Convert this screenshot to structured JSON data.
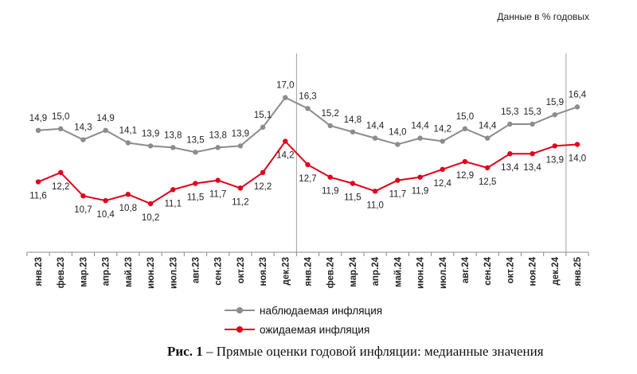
{
  "units_label": "Данные в % годовых",
  "caption": {
    "figure": "Рис. 1",
    "text": " – Прямые оценки годовой инфляции: медианные значения"
  },
  "legend": {
    "observed": "наблюдаемая  инфляция",
    "expected": "ожидаемая  инфляция"
  },
  "chart_data": {
    "type": "line",
    "title": "",
    "xlabel": "",
    "ylabel": "",
    "categories": [
      "янв.23",
      "фев.23",
      "мар.23",
      "апр.23",
      "май.23",
      "июн.23",
      "июл.23",
      "авг.23",
      "сен.23",
      "окт.23",
      "ноя.23",
      "дек.23",
      "янв.24",
      "фев.24",
      "мар.24",
      "апр.24",
      "май.24",
      "июн.24",
      "июл.24",
      "авг.24",
      "сен.24",
      "окт.24",
      "ноя.24",
      "дек.24",
      "янв.25"
    ],
    "ylim": [
      5,
      18
    ],
    "series": [
      {
        "name": "наблюдаемая  инфляция",
        "color": "#8c8c8c",
        "values": [
          14.9,
          15.0,
          14.3,
          14.9,
          14.1,
          13.9,
          13.8,
          13.5,
          13.8,
          13.9,
          15.1,
          17.0,
          16.3,
          15.2,
          14.8,
          14.4,
          14.0,
          14.4,
          14.2,
          15.0,
          14.4,
          15.3,
          15.3,
          15.9,
          16.4
        ],
        "labels": [
          "14,9",
          "15,0",
          "14,3",
          "14,9",
          "14,1",
          "13,9",
          "13,8",
          "13,5",
          "13,8",
          "13,9",
          "15,1",
          "17,0",
          "16,3",
          "15,2",
          "14,8",
          "14,4",
          "14,0",
          "14,4",
          "14,2",
          "15,0",
          "14,4",
          "15,3",
          "15,3",
          "15,9",
          "16,4"
        ]
      },
      {
        "name": "ожидаемая  инфляция",
        "color": "#e0001b",
        "values": [
          11.6,
          12.2,
          10.7,
          10.4,
          10.8,
          10.2,
          11.1,
          11.5,
          11.7,
          11.2,
          12.2,
          14.2,
          12.7,
          11.9,
          11.5,
          11.0,
          11.7,
          11.9,
          12.4,
          12.9,
          12.5,
          13.4,
          13.4,
          13.9,
          14.0
        ],
        "labels": [
          "11,6",
          "12,2",
          "10,7",
          "10,4",
          "10,8",
          "10,2",
          "11,1",
          "11,5",
          "11,7",
          "11,2",
          "12,2",
          "14,2",
          "12,7",
          "11,9",
          "11,5",
          "11,0",
          "11,7",
          "11,9",
          "12,4",
          "12,9",
          "12,5",
          "13,4",
          "13,4",
          "13,9",
          "14,0"
        ]
      }
    ],
    "grid": false,
    "legend_position": "bottom-center"
  }
}
